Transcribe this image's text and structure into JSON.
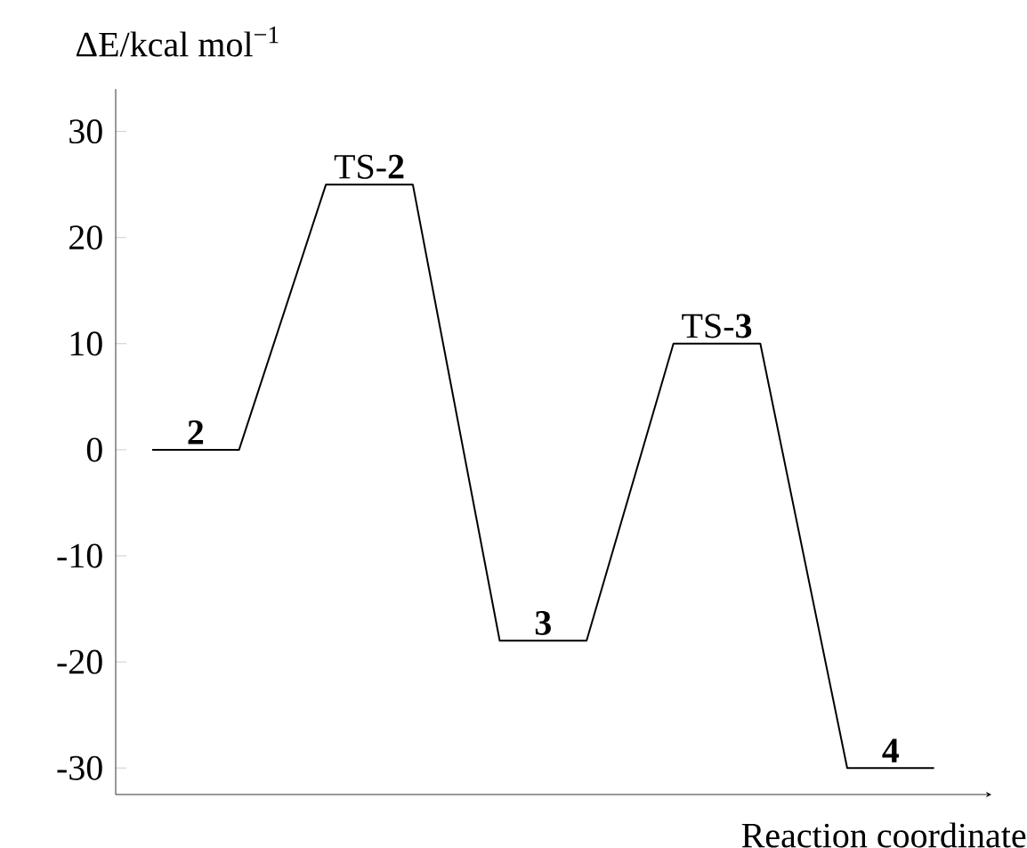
{
  "chart_data": {
    "type": "line",
    "ylabel": "ΔE/kcal mol$^{−1}$",
    "xlabel": "Reaction coordinate",
    "categories": [
      null,
      null,
      null,
      null,
      null,
      null,
      null,
      null,
      null,
      null
    ],
    "values": [
      0,
      0,
      25,
      25,
      -18,
      -18,
      10,
      10,
      -30,
      -30
    ],
    "color": "#000000",
    "ylim": [
      -32.5,
      34
    ],
    "yticks": [
      -30,
      -20,
      -10,
      0,
      10,
      20,
      30
    ],
    "grid": false,
    "marker": "none",
    "line_style": "solid",
    "annotations": [
      {
        "text": "**2**",
        "y": 0
      },
      {
        "text": "TS-**2**",
        "y": 25
      },
      {
        "text": "**3**",
        "y": -18
      },
      {
        "text": "TS-**3**",
        "y": 10
      },
      {
        "text": "**4**",
        "y": -30
      }
    ]
  }
}
